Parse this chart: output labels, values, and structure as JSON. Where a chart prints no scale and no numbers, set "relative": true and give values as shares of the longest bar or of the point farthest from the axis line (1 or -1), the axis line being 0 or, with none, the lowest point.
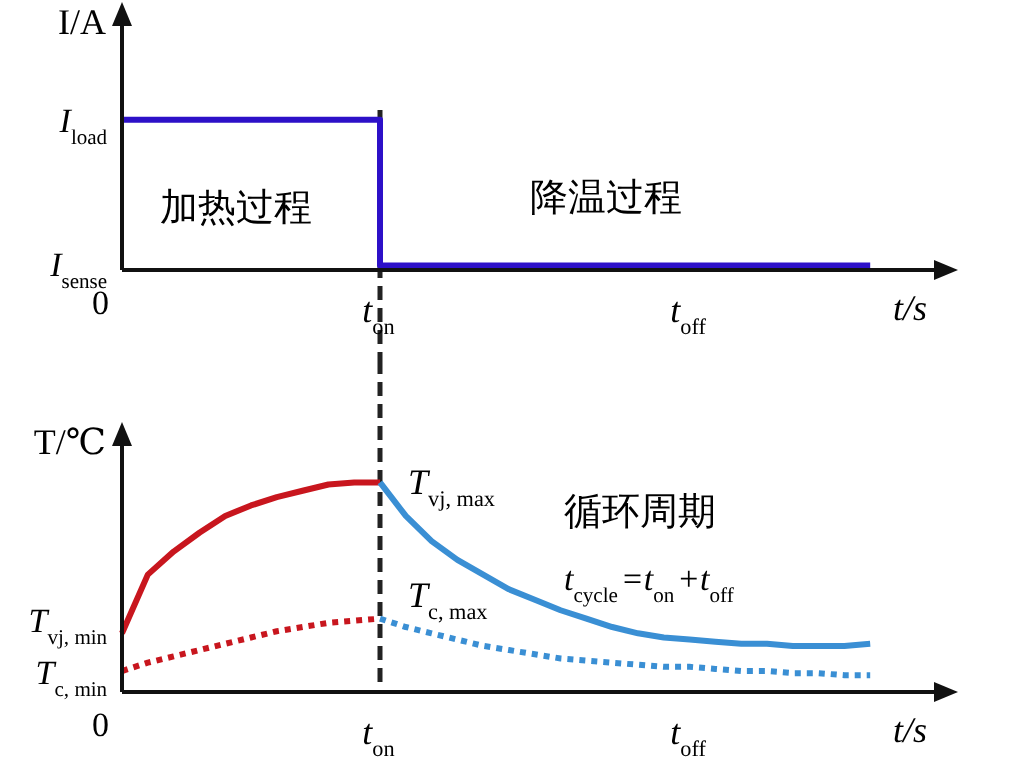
{
  "chart_data": [
    {
      "type": "step",
      "relative": true,
      "ylabel": "I/A",
      "xlabel": "t/s",
      "categories": [
        null,
        null,
        null,
        null,
        null,
        null,
        null,
        null,
        null,
        null,
        "t$_{on}$",
        null,
        null,
        null,
        null,
        null,
        null,
        null,
        null,
        null,
        null,
        null,
        "t$_{off}$",
        null,
        null,
        null,
        null,
        null,
        null,
        null
      ],
      "series": [
        {
          "color": "#2d10c8",
          "line_style": "solid",
          "values": [
            1,
            1,
            1,
            1,
            1,
            1,
            1,
            1,
            1,
            1,
            0.03,
            0.03,
            0.03,
            0.03,
            0.03,
            0.03,
            0.03,
            0.03,
            0.03,
            0.03,
            0.03,
            0.03,
            0.03,
            0.03,
            0.03,
            0.03,
            0.03,
            0.03,
            0.03,
            0.03
          ]
        }
      ],
      "ref_lines": [
        {
          "axis": "x",
          "value": "t$_{on}$",
          "label": null,
          "color": "#222222",
          "line_style": "dashed"
        }
      ],
      "annotations": [
        "I$_{load}$",
        "I$_{sense}$",
        "0",
        "加热过程",
        "降温过程"
      ]
    },
    {
      "type": "line",
      "relative": true,
      "ylabel": "T/℃",
      "xlabel": "t/s",
      "categories": [
        null,
        null,
        null,
        null,
        null,
        null,
        null,
        null,
        null,
        null,
        "t$_{on}$",
        null,
        null,
        null,
        null,
        null,
        null,
        null,
        null,
        null,
        null,
        null,
        "t$_{off}$",
        null,
        null,
        null,
        null,
        null,
        null,
        null
      ],
      "series": [
        {
          "color": "#c8161e",
          "line_style": "solid",
          "values": [
            0.28,
            0.56,
            0.67,
            0.76,
            0.84,
            0.89,
            0.93,
            0.96,
            0.99,
            1,
            1,
            null,
            null,
            null,
            null,
            null,
            null,
            null,
            null,
            null,
            null,
            null,
            null,
            null,
            null,
            null,
            null,
            null,
            null,
            null
          ]
        },
        {
          "color": "#3a8fd4",
          "line_style": "solid",
          "values": [
            null,
            null,
            null,
            null,
            null,
            null,
            null,
            null,
            null,
            null,
            1,
            0.84,
            0.72,
            0.63,
            0.56,
            0.49,
            0.44,
            0.39,
            0.35,
            0.31,
            0.28,
            0.26,
            0.25,
            0.24,
            0.23,
            0.23,
            0.22,
            0.22,
            0.22,
            0.23
          ]
        },
        {
          "color": "#c8161e",
          "line_style": "dotted",
          "values": [
            0.1,
            0.14,
            0.17,
            0.2,
            0.23,
            0.26,
            0.29,
            0.31,
            0.33,
            0.34,
            0.35,
            null,
            null,
            null,
            null,
            null,
            null,
            null,
            null,
            null,
            null,
            null,
            null,
            null,
            null,
            null,
            null,
            null,
            null,
            null
          ]
        },
        {
          "color": "#3a8fd4",
          "line_style": "dotted",
          "values": [
            null,
            null,
            null,
            null,
            null,
            null,
            null,
            null,
            null,
            null,
            0.35,
            0.31,
            0.28,
            0.25,
            0.22,
            0.2,
            0.18,
            0.16,
            0.15,
            0.14,
            0.13,
            0.12,
            0.12,
            0.11,
            0.1,
            0.1,
            0.09,
            0.09,
            0.08,
            0.08
          ]
        }
      ],
      "ref_lines": [
        {
          "axis": "x",
          "value": "t$_{on}$",
          "label": null,
          "color": "#222222",
          "line_style": "dashed"
        }
      ],
      "annotations": [
        "T$_{vj, min}$",
        "T$_{c, min}$",
        "0",
        {
          "text": "T$_{vj, max}$",
          "x": "t$_{on}$",
          "y": 1
        },
        {
          "text": "T$_{c, max}$",
          "x": "t$_{on}$",
          "y": 0.35
        },
        "循环周期",
        "t$_{cycle}$=t$_{on}$+t$_{off}$"
      ]
    }
  ]
}
